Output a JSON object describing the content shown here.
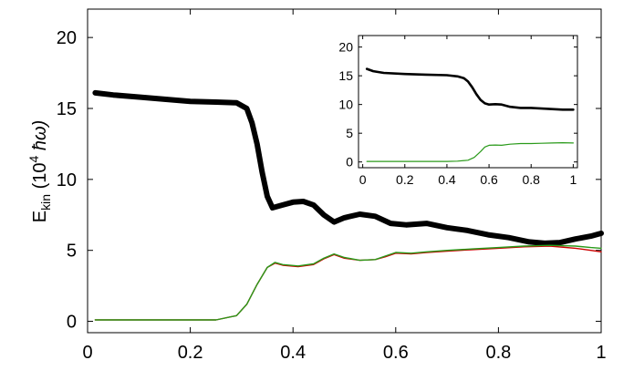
{
  "chart_data": [
    {
      "type": "line",
      "ylabel": {
        "main": "E",
        "sub": "kin",
        "unit_pre": " (10",
        "sup": "4",
        "unit_post": " ħω)"
      },
      "xlim": [
        0,
        1
      ],
      "ylim": [
        -0.8,
        22
      ],
      "xticks": [
        0,
        0.2,
        0.4,
        0.6,
        0.8,
        1
      ],
      "xtick_labels": [
        "0",
        "0.2",
        "0.4",
        "0.6",
        "0.8",
        "1"
      ],
      "yticks": [
        0,
        5,
        10,
        15,
        20
      ],
      "ytick_labels": [
        "0",
        "5",
        "10",
        "15",
        "20"
      ],
      "grid": false,
      "series": [
        {
          "color": "#000000",
          "points": [
            [
              0.015,
              16.1
            ],
            [
              0.05,
              15.95
            ],
            [
              0.1,
              15.8
            ],
            [
              0.15,
              15.65
            ],
            [
              0.2,
              15.5
            ],
            [
              0.25,
              15.45
            ],
            [
              0.29,
              15.4
            ],
            [
              0.31,
              15.0
            ],
            [
              0.32,
              14.0
            ],
            [
              0.33,
              12.5
            ],
            [
              0.34,
              10.5
            ],
            [
              0.35,
              8.8
            ],
            [
              0.36,
              8.0
            ],
            [
              0.38,
              8.2
            ],
            [
              0.4,
              8.4
            ],
            [
              0.42,
              8.45
            ],
            [
              0.44,
              8.2
            ],
            [
              0.46,
              7.5
            ],
            [
              0.48,
              7.0
            ],
            [
              0.5,
              7.3
            ],
            [
              0.53,
              7.55
            ],
            [
              0.56,
              7.4
            ],
            [
              0.59,
              6.9
            ],
            [
              0.62,
              6.8
            ],
            [
              0.66,
              6.9
            ],
            [
              0.7,
              6.6
            ],
            [
              0.74,
              6.4
            ],
            [
              0.78,
              6.1
            ],
            [
              0.82,
              5.9
            ],
            [
              0.86,
              5.6
            ],
            [
              0.89,
              5.5
            ],
            [
              0.92,
              5.55
            ],
            [
              0.95,
              5.8
            ],
            [
              0.98,
              6.0
            ],
            [
              1.0,
              6.2
            ]
          ]
        },
        {
          "color": "#cc0000",
          "points": [
            [
              0.015,
              0.1
            ],
            [
              0.25,
              0.1
            ],
            [
              0.29,
              0.4
            ],
            [
              0.31,
              1.2
            ],
            [
              0.33,
              2.6
            ],
            [
              0.35,
              3.8
            ],
            [
              0.365,
              4.1
            ],
            [
              0.38,
              3.95
            ],
            [
              0.41,
              3.85
            ],
            [
              0.44,
              4.0
            ],
            [
              0.46,
              4.4
            ],
            [
              0.48,
              4.7
            ],
            [
              0.5,
              4.45
            ],
            [
              0.53,
              4.3
            ],
            [
              0.56,
              4.35
            ],
            [
              0.58,
              4.55
            ],
            [
              0.6,
              4.8
            ],
            [
              0.63,
              4.75
            ],
            [
              0.66,
              4.85
            ],
            [
              0.7,
              4.95
            ],
            [
              0.75,
              5.05
            ],
            [
              0.8,
              5.15
            ],
            [
              0.85,
              5.25
            ],
            [
              0.9,
              5.3
            ],
            [
              0.95,
              5.15
            ],
            [
              0.98,
              5.0
            ],
            [
              1.0,
              4.9
            ]
          ]
        },
        {
          "color": "#2a9a1a",
          "points": [
            [
              0.015,
              0.1
            ],
            [
              0.25,
              0.1
            ],
            [
              0.29,
              0.4
            ],
            [
              0.31,
              1.2
            ],
            [
              0.33,
              2.6
            ],
            [
              0.35,
              3.8
            ],
            [
              0.365,
              4.15
            ],
            [
              0.38,
              4.0
            ],
            [
              0.41,
              3.9
            ],
            [
              0.44,
              4.05
            ],
            [
              0.46,
              4.45
            ],
            [
              0.48,
              4.75
            ],
            [
              0.5,
              4.5
            ],
            [
              0.53,
              4.3
            ],
            [
              0.56,
              4.35
            ],
            [
              0.58,
              4.6
            ],
            [
              0.6,
              4.85
            ],
            [
              0.63,
              4.8
            ],
            [
              0.66,
              4.9
            ],
            [
              0.7,
              5.0
            ],
            [
              0.75,
              5.1
            ],
            [
              0.8,
              5.2
            ],
            [
              0.85,
              5.3
            ],
            [
              0.9,
              5.35
            ],
            [
              0.95,
              5.3
            ],
            [
              0.98,
              5.2
            ],
            [
              1.0,
              5.15
            ]
          ]
        }
      ]
    },
    {
      "type": "line",
      "xlim": [
        -0.02,
        1.02
      ],
      "ylim": [
        -1,
        22
      ],
      "xticks": [
        0,
        0.2,
        0.4,
        0.6,
        0.8,
        1
      ],
      "xtick_labels": [
        "0",
        "0.2",
        "0.4",
        "0.6",
        "0.8",
        "1"
      ],
      "yticks": [
        0,
        5,
        10,
        15,
        20
      ],
      "ytick_labels": [
        "0",
        "5",
        "10",
        "15",
        "20"
      ],
      "grid": false,
      "series": [
        {
          "color": "#000000",
          "points": [
            [
              0.02,
              16.2
            ],
            [
              0.05,
              15.8
            ],
            [
              0.1,
              15.5
            ],
            [
              0.2,
              15.3
            ],
            [
              0.3,
              15.2
            ],
            [
              0.4,
              15.1
            ],
            [
              0.45,
              14.9
            ],
            [
              0.48,
              14.6
            ],
            [
              0.5,
              14.0
            ],
            [
              0.52,
              13.0
            ],
            [
              0.54,
              11.8
            ],
            [
              0.56,
              10.8
            ],
            [
              0.58,
              10.2
            ],
            [
              0.6,
              10.0
            ],
            [
              0.63,
              10.05
            ],
            [
              0.66,
              10.0
            ],
            [
              0.7,
              9.6
            ],
            [
              0.75,
              9.4
            ],
            [
              0.8,
              9.4
            ],
            [
              0.85,
              9.3
            ],
            [
              0.9,
              9.2
            ],
            [
              0.95,
              9.1
            ],
            [
              1.0,
              9.1
            ]
          ]
        },
        {
          "color": "#2a9a1a",
          "points": [
            [
              0.02,
              0.1
            ],
            [
              0.4,
              0.1
            ],
            [
              0.45,
              0.15
            ],
            [
              0.5,
              0.3
            ],
            [
              0.53,
              0.8
            ],
            [
              0.56,
              1.8
            ],
            [
              0.58,
              2.6
            ],
            [
              0.6,
              2.9
            ],
            [
              0.63,
              2.95
            ],
            [
              0.66,
              2.9
            ],
            [
              0.7,
              3.1
            ],
            [
              0.75,
              3.2
            ],
            [
              0.8,
              3.2
            ],
            [
              0.85,
              3.25
            ],
            [
              0.9,
              3.3
            ],
            [
              0.95,
              3.35
            ],
            [
              1.0,
              3.3
            ]
          ]
        }
      ]
    }
  ]
}
